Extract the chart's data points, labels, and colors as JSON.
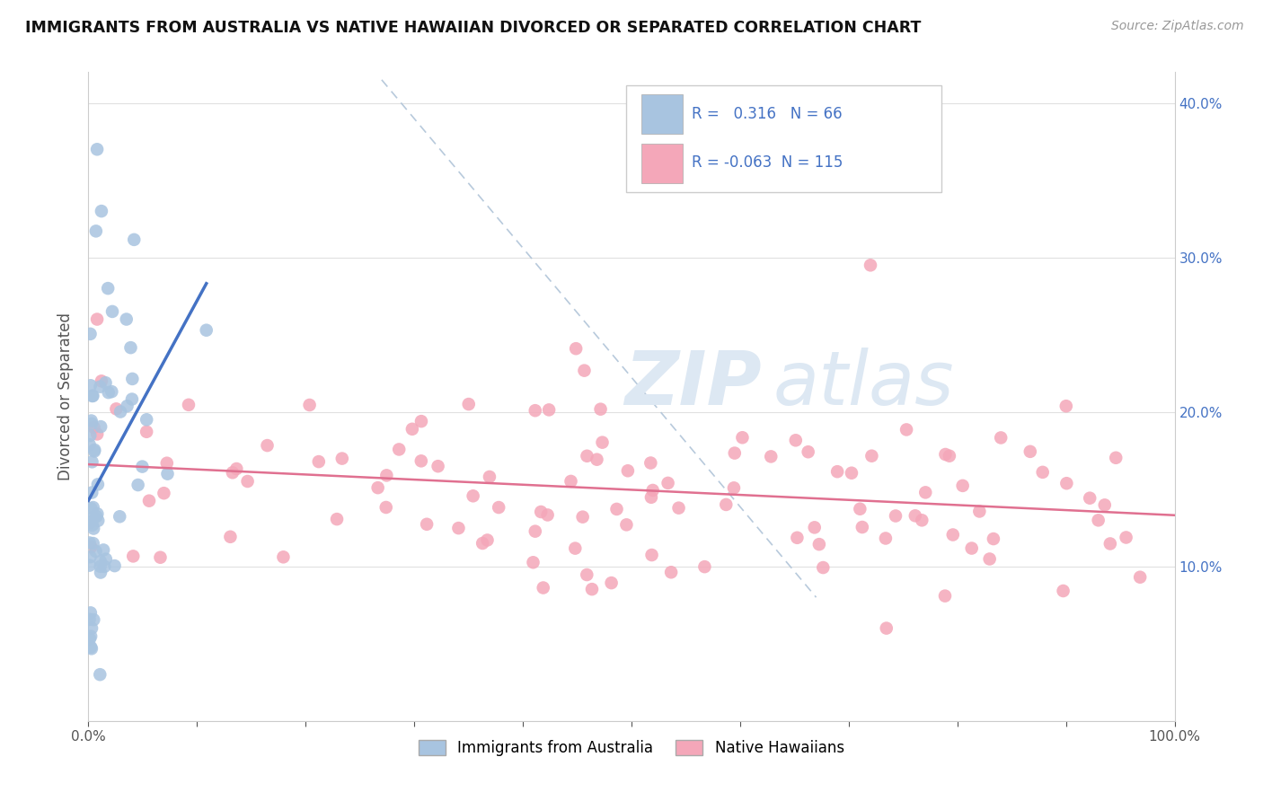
{
  "title": "IMMIGRANTS FROM AUSTRALIA VS NATIVE HAWAIIAN DIVORCED OR SEPARATED CORRELATION CHART",
  "source": "Source: ZipAtlas.com",
  "ylabel": "Divorced or Separated",
  "xlim": [
    0.0,
    1.0
  ],
  "ylim": [
    0.0,
    0.42
  ],
  "xticks": [
    0.0,
    0.1,
    0.2,
    0.3,
    0.4,
    0.5,
    0.6,
    0.7,
    0.8,
    0.9,
    1.0
  ],
  "xticklabels": [
    "0.0%",
    "",
    "",
    "",
    "",
    "",
    "",
    "",
    "",
    "",
    "100.0%"
  ],
  "yticks": [
    0.0,
    0.1,
    0.2,
    0.3,
    0.4
  ],
  "blue_R": 0.316,
  "blue_N": 66,
  "pink_R": -0.063,
  "pink_N": 115,
  "blue_color": "#a8c4e0",
  "pink_color": "#f4a7b9",
  "blue_line_color": "#4472c4",
  "pink_line_color": "#e07090",
  "right_tick_color": "#4472c4",
  "watermark_color": "#dde8f3",
  "legend_label_blue": "Immigrants from Australia",
  "legend_label_pink": "Native Hawaiians",
  "diag_line_color": "#b0c4d8",
  "grid_color": "#e0e0e0",
  "spine_color": "#cccccc"
}
